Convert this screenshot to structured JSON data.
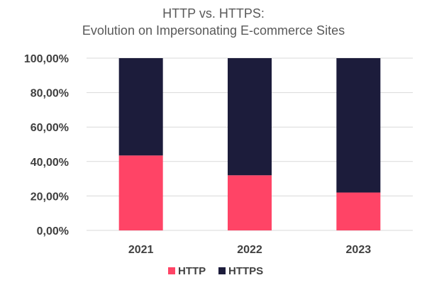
{
  "chart_data": {
    "type": "bar",
    "stacked": true,
    "title": [
      "HTTP vs. HTTPS:",
      "Evolution on Impersonating E-commerce Sites"
    ],
    "categories": [
      "2021",
      "2022",
      "2023"
    ],
    "series": [
      {
        "name": "HTTP",
        "values": [
          43.5,
          32.0,
          22.0
        ],
        "color": "#ff4466"
      },
      {
        "name": "HTTPS",
        "values": [
          56.5,
          68.0,
          78.0
        ],
        "color": "#1c1c3b"
      }
    ],
    "ylim": [
      0,
      100
    ],
    "yticks": [
      0,
      20,
      40,
      60,
      80,
      100
    ],
    "ytick_labels": [
      "0,00%",
      "20,00%",
      "40,00%",
      "60,00%",
      "80,00%",
      "100,00%"
    ],
    "grid": true,
    "legend_position": "bottom"
  }
}
